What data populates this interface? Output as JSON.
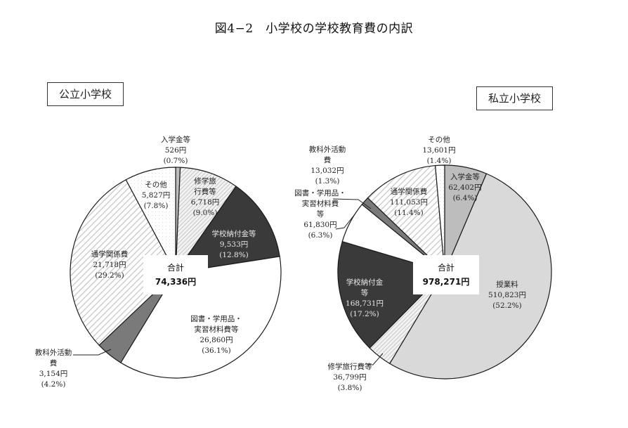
{
  "title": "図4−2　小学校の学校教育費の内訳",
  "public": {
    "label": "公立小学校",
    "total_label": "合計",
    "total_value": "74,336円",
    "slices": [
      {
        "name": "入学金等",
        "amount": "526円",
        "pct": "(0.7%)",
        "value": 0.7,
        "fill": "#bdbdbd",
        "pattern": "solid"
      },
      {
        "name": "修学旅行費等",
        "amount": "6,718円",
        "pct": "(9.0%)",
        "value": 9.0,
        "fill": "#e4e4e4",
        "pattern": "fine-diag"
      },
      {
        "name": "学校納付金等",
        "amount": "9,533円",
        "pct": "(12.8%)",
        "value": 12.8,
        "fill": "#3a3a3a",
        "pattern": "solid"
      },
      {
        "name": "図書・学用品・実習材料費等",
        "amount": "26,860円",
        "pct": "(36.1%)",
        "value": 36.1,
        "fill": "#ffffff",
        "pattern": "solid"
      },
      {
        "name": "教科外活動費",
        "amount": "3,154円",
        "pct": "(4.2%)",
        "value": 4.2,
        "fill": "#7a7a7a",
        "pattern": "solid"
      },
      {
        "name": "通学関係費",
        "amount": "21,718円",
        "pct": "(29.2%)",
        "value": 29.2,
        "fill": "#f0f0f0",
        "pattern": "wide-diag"
      },
      {
        "name": "その他",
        "amount": "5,827円",
        "pct": "(7.8%)",
        "value": 7.8,
        "fill": "#fafafa",
        "pattern": "dots"
      }
    ],
    "labels": {
      "entrance": [
        "入学金等",
        "526円",
        "(0.7%)"
      ],
      "trip": [
        "修学旅",
        "行費等",
        "6,718円",
        "(9.0%)"
      ],
      "school_fee": [
        "学校納付金等",
        "9,533円",
        "(12.8%)"
      ],
      "books": [
        "図書・学用品・",
        "実習材料費等",
        "26,860円",
        "(36.1%)"
      ],
      "extra": [
        "教科外活動",
        "費",
        "3,154円",
        "(4.2%)"
      ],
      "commute": [
        "通学関係費",
        "21,718円",
        "(29.2%)"
      ],
      "other": [
        "その他",
        "5,827円",
        "(7.8%)"
      ]
    }
  },
  "private": {
    "label": "私立小学校",
    "total_label": "合計",
    "total_value": "978,271円",
    "slices": [
      {
        "name": "入学金等",
        "amount": "62,402円",
        "pct": "(6.4%)",
        "value": 6.4,
        "fill": "#bdbdbd",
        "pattern": "solid"
      },
      {
        "name": "授業料",
        "amount": "510,823円",
        "pct": "(52.2%)",
        "value": 52.2,
        "fill": "#d9d9d9",
        "pattern": "solid"
      },
      {
        "name": "修学旅行費等",
        "amount": "36,799円",
        "pct": "(3.8%)",
        "value": 3.8,
        "fill": "#e4e4e4",
        "pattern": "fine-diag"
      },
      {
        "name": "学校納付金等",
        "amount": "168,731円",
        "pct": "(17.2%)",
        "value": 17.2,
        "fill": "#3a3a3a",
        "pattern": "solid"
      },
      {
        "name": "図書・学用品・実習材料費等",
        "amount": "61,830円",
        "pct": "(6.3%)",
        "value": 6.3,
        "fill": "#ffffff",
        "pattern": "solid"
      },
      {
        "name": "教科外活動費",
        "amount": "13,032円",
        "pct": "(1.3%)",
        "value": 1.3,
        "fill": "#7a7a7a",
        "pattern": "solid"
      },
      {
        "name": "通学関係費",
        "amount": "111,053円",
        "pct": "(11.4%)",
        "value": 11.4,
        "fill": "#f0f0f0",
        "pattern": "wide-diag"
      },
      {
        "name": "その他",
        "amount": "13,601円",
        "pct": "(1.4%)",
        "value": 1.4,
        "fill": "#fafafa",
        "pattern": "dots"
      }
    ],
    "labels": {
      "entrance": [
        "入学金等",
        "62,402円",
        "(6.4%)"
      ],
      "tuition": [
        "授業料",
        "510,823円",
        "(52.2%)"
      ],
      "trip": [
        "修学旅行費等",
        "36,799円",
        "(3.8%)"
      ],
      "school_fee": [
        "学校納付金",
        "等",
        "168,731円",
        "(17.2%)"
      ],
      "books": [
        "図書・学用品・",
        "実習材料費",
        "等",
        "61,830円",
        "(6.3%)"
      ],
      "extra": [
        "教科外活動",
        "費",
        "13,032円",
        "(1.3%)"
      ],
      "commute": [
        "通学関係費",
        "111,053円",
        "(11.4%)"
      ],
      "other": [
        "その他",
        "13,601円",
        "(1.4%)"
      ]
    }
  },
  "chart_data": [
    {
      "type": "pie",
      "title": "公立小学校",
      "total": "74,336円",
      "categories": [
        "入学金等",
        "修学旅行費等",
        "学校納付金等",
        "図書・学用品・実習材料費等",
        "教科外活動費",
        "通学関係費",
        "その他"
      ],
      "amounts_yen": [
        526,
        6718,
        9533,
        26860,
        3154,
        21718,
        5827
      ],
      "values": [
        0.7,
        9.0,
        12.8,
        36.1,
        4.2,
        29.2,
        7.8
      ],
      "start_angle": "12 o'clock",
      "direction": "clockwise"
    },
    {
      "type": "pie",
      "title": "私立小学校",
      "total": "978,271円",
      "categories": [
        "入学金等",
        "授業料",
        "修学旅行費等",
        "学校納付金等",
        "図書・学用品・実習材料費等",
        "教科外活動費",
        "通学関係費",
        "その他"
      ],
      "amounts_yen": [
        62402,
        510823,
        36799,
        168731,
        61830,
        13032,
        111053,
        13601
      ],
      "values": [
        6.4,
        52.2,
        3.8,
        17.2,
        6.3,
        1.3,
        11.4,
        1.4
      ],
      "start_angle": "12 o'clock",
      "direction": "clockwise"
    }
  ]
}
